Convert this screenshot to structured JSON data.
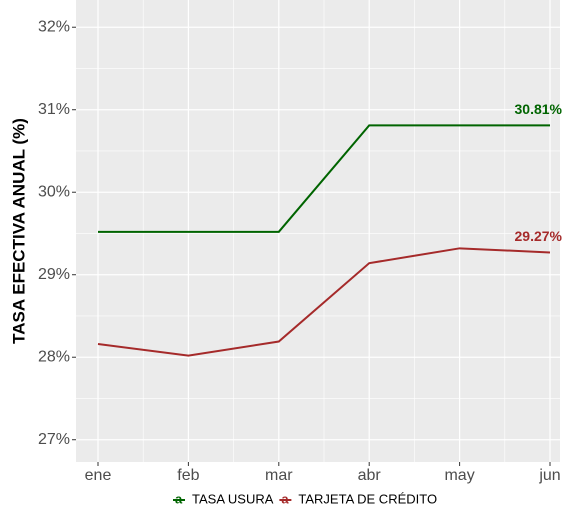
{
  "chart_data": {
    "type": "line",
    "y_label": "TASA EFECTIVA ANUAL (%)",
    "categories": [
      "ene",
      "feb",
      "mar",
      "abr",
      "may",
      "jun"
    ],
    "series": [
      {
        "name": "TASA USURA",
        "color": "#006400",
        "values": [
          29.52,
          29.52,
          29.52,
          30.81,
          30.81,
          30.81
        ],
        "value_labels": [
          null,
          null,
          null,
          null,
          null,
          "30.81%"
        ]
      },
      {
        "name": "TARJETA DE CRÉDITO",
        "color": "#A52A2A",
        "values": [
          28.16,
          28.02,
          28.19,
          29.14,
          29.32,
          29.27
        ],
        "value_labels": [
          null,
          null,
          null,
          null,
          null,
          "29.27%"
        ]
      }
    ],
    "ylim": [
      26.73,
      32.33
    ],
    "yticks": [
      {
        "value": 27,
        "label": "27%"
      },
      {
        "value": 28,
        "label": "28%"
      },
      {
        "value": 29,
        "label": "29%"
      },
      {
        "value": 30,
        "label": "30%"
      },
      {
        "value": 31,
        "label": "31%"
      },
      {
        "value": 32,
        "label": "32%"
      }
    ],
    "grid": true,
    "legend": "bottom"
  }
}
